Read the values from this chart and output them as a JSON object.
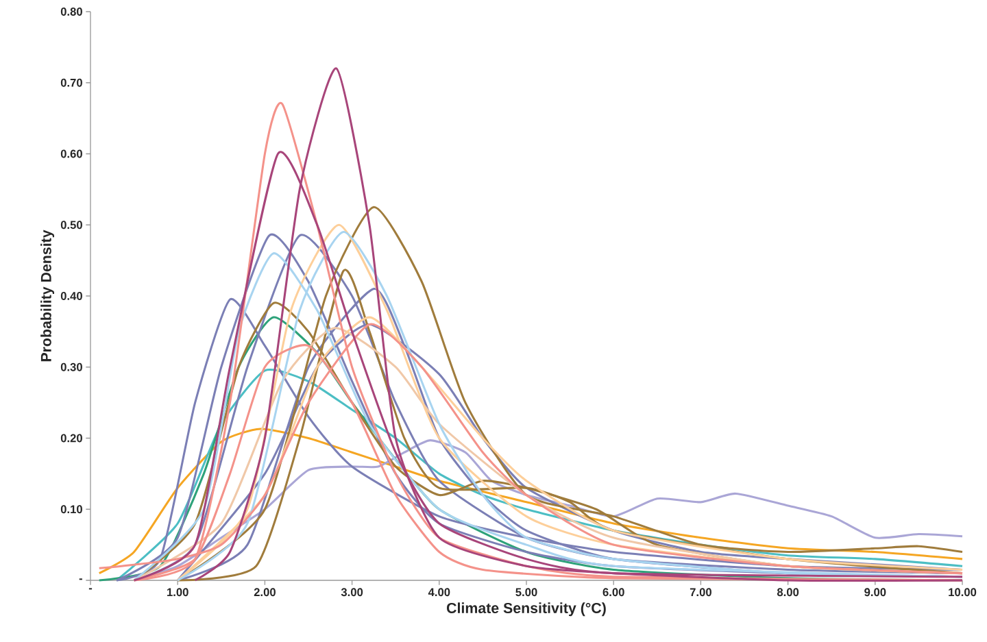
{
  "chart_data": {
    "type": "line",
    "xlabel": "Climate Sensitivity (°C)",
    "ylabel": "Probability Density",
    "xlim": [
      0,
      10
    ],
    "ylim": [
      0,
      0.8
    ],
    "xticks": [
      {
        "value": 0,
        "label": "-"
      },
      {
        "value": 1,
        "label": "1.00"
      },
      {
        "value": 2,
        "label": "2.00"
      },
      {
        "value": 3,
        "label": "3.00"
      },
      {
        "value": 4,
        "label": "4.00"
      },
      {
        "value": 5,
        "label": "5.00"
      },
      {
        "value": 6,
        "label": "6.00"
      },
      {
        "value": 7,
        "label": "7.00"
      },
      {
        "value": 8,
        "label": "8.00"
      },
      {
        "value": 9,
        "label": "9.00"
      },
      {
        "value": 10,
        "label": "10.00"
      }
    ],
    "yticks": [
      {
        "value": 0,
        "label": "-"
      },
      {
        "value": 0.1,
        "label": "0.10"
      },
      {
        "value": 0.2,
        "label": "0.20"
      },
      {
        "value": 0.3,
        "label": "0.30"
      },
      {
        "value": 0.4,
        "label": "0.40"
      },
      {
        "value": 0.5,
        "label": "0.50"
      },
      {
        "value": 0.6,
        "label": "0.60"
      },
      {
        "value": 0.7,
        "label": "0.70"
      },
      {
        "value": 0.8,
        "label": "0.80"
      }
    ],
    "series": [
      {
        "color": "#f5a623",
        "x": [
          0.1,
          0.5,
          1,
          1.5,
          1.95,
          2.5,
          3,
          3.5,
          4,
          5,
          6,
          7,
          8,
          9,
          10
        ],
        "values": [
          0.01,
          0.04,
          0.13,
          0.195,
          0.213,
          0.2,
          0.18,
          0.16,
          0.14,
          0.11,
          0.08,
          0.06,
          0.045,
          0.04,
          0.03
        ]
      },
      {
        "color": "#aaa6d6",
        "x": [
          0.5,
          1,
          1.5,
          2,
          2.5,
          3,
          3.3,
          3.6,
          3.9,
          4.3,
          4.6,
          5,
          5.5,
          6,
          6.5,
          7,
          7.4,
          8,
          8.5,
          9,
          9.5,
          10
        ],
        "values": [
          0,
          0.02,
          0.06,
          0.1,
          0.155,
          0.16,
          0.16,
          0.18,
          0.197,
          0.18,
          0.14,
          0.12,
          0.105,
          0.09,
          0.115,
          0.11,
          0.122,
          0.105,
          0.09,
          0.06,
          0.065,
          0.062
        ]
      },
      {
        "color": "#4cbec4",
        "x": [
          0.3,
          1,
          1.5,
          2,
          2.5,
          3,
          3.5,
          4,
          4.5,
          5,
          6,
          7,
          8,
          9,
          10
        ],
        "values": [
          0,
          0.08,
          0.22,
          0.295,
          0.28,
          0.24,
          0.2,
          0.15,
          0.12,
          0.1,
          0.07,
          0.05,
          0.035,
          0.03,
          0.02
        ]
      },
      {
        "color": "#2ea27a",
        "x": [
          0.1,
          0.8,
          1.3,
          1.7,
          2.1,
          2.6,
          3,
          3.5,
          4,
          5,
          6,
          8,
          10
        ],
        "values": [
          0,
          0.02,
          0.15,
          0.3,
          0.37,
          0.32,
          0.25,
          0.17,
          0.1,
          0.04,
          0.015,
          0.003,
          0
        ]
      },
      {
        "color": "#7b7fb5",
        "x": [
          0.3,
          0.8,
          1.2,
          1.6,
          2,
          2.5,
          3,
          4,
          5,
          6,
          8,
          10
        ],
        "values": [
          0,
          0.03,
          0.25,
          0.395,
          0.33,
          0.23,
          0.16,
          0.09,
          0.06,
          0.04,
          0.02,
          0.015
        ]
      },
      {
        "color": "#7b7fb5",
        "x": [
          0.3,
          1,
          1.5,
          2.05,
          2.5,
          3,
          3.5,
          4,
          5,
          6,
          8,
          10
        ],
        "values": [
          0,
          0.06,
          0.3,
          0.485,
          0.42,
          0.28,
          0.15,
          0.08,
          0.04,
          0.02,
          0.01,
          0.005
        ]
      },
      {
        "color": "#7b7fb5",
        "x": [
          0.5,
          1.2,
          1.8,
          2.4,
          3,
          3.5,
          4,
          5,
          6,
          8,
          10
        ],
        "values": [
          0,
          0.05,
          0.3,
          0.485,
          0.4,
          0.25,
          0.14,
          0.06,
          0.03,
          0.015,
          0.01
        ]
      },
      {
        "color": "#7b7fb5",
        "x": [
          1,
          1.8,
          2.5,
          3.25,
          3.6,
          4,
          4.5,
          5,
          6,
          8,
          10
        ],
        "values": [
          0,
          0.05,
          0.3,
          0.41,
          0.33,
          0.2,
          0.12,
          0.07,
          0.03,
          0.01,
          0.005
        ]
      },
      {
        "color": "#7b7fb5",
        "x": [
          1,
          2,
          2.6,
          3.2,
          4,
          4.5,
          5,
          6,
          7,
          8,
          10
        ],
        "values": [
          0,
          0.15,
          0.3,
          0.36,
          0.29,
          0.2,
          0.13,
          0.07,
          0.04,
          0.03,
          0.015
        ]
      },
      {
        "color": "#a07c3c",
        "x": [
          0.5,
          1.2,
          1.7,
          2.1,
          2.5,
          3,
          3.5,
          4,
          4.5,
          5,
          5.8,
          6.5,
          8,
          10
        ],
        "values": [
          0,
          0.08,
          0.3,
          0.39,
          0.35,
          0.25,
          0.16,
          0.12,
          0.14,
          0.13,
          0.1,
          0.05,
          0.02,
          0.01
        ]
      },
      {
        "color": "#a07c3c",
        "x": [
          1,
          1.9,
          2.4,
          2.9,
          3.2,
          3.6,
          4,
          5,
          5.5,
          6,
          8,
          10
        ],
        "values": [
          0,
          0.02,
          0.2,
          0.435,
          0.35,
          0.2,
          0.13,
          0.13,
          0.11,
          0.07,
          0.03,
          0.01
        ]
      },
      {
        "color": "#a07c3c",
        "x": [
          1,
          2,
          2.7,
          3.25,
          3.8,
          4.3,
          5,
          6,
          7,
          8,
          9,
          9.5,
          10
        ],
        "values": [
          0,
          0.1,
          0.4,
          0.525,
          0.42,
          0.25,
          0.12,
          0.09,
          0.05,
          0.04,
          0.045,
          0.048,
          0.04
        ]
      },
      {
        "color": "#f0c8a8",
        "x": [
          0.5,
          1.5,
          2.2,
          2.8,
          3.5,
          4,
          5,
          6,
          8,
          10
        ],
        "values": [
          0,
          0.08,
          0.28,
          0.355,
          0.3,
          0.22,
          0.12,
          0.06,
          0.02,
          0.01
        ]
      },
      {
        "color": "#fdcf9a",
        "x": [
          1,
          2,
          2.6,
          3.2,
          3.8,
          4.5,
          5,
          6,
          8,
          10
        ],
        "values": [
          0,
          0.12,
          0.3,
          0.37,
          0.3,
          0.2,
          0.14,
          0.07,
          0.03,
          0.015
        ]
      },
      {
        "color": "#fdcf9a",
        "x": [
          1,
          1.8,
          2.3,
          2.85,
          3.4,
          4,
          5,
          6,
          8,
          10
        ],
        "values": [
          0,
          0.1,
          0.38,
          0.5,
          0.38,
          0.2,
          0.09,
          0.05,
          0.02,
          0.01
        ]
      },
      {
        "color": "#a8d4f0",
        "x": [
          0.5,
          1.3,
          1.7,
          2.1,
          2.6,
          3.2,
          4,
          5,
          6,
          10
        ],
        "values": [
          0,
          0.1,
          0.35,
          0.46,
          0.38,
          0.22,
          0.1,
          0.05,
          0.02,
          0.005
        ]
      },
      {
        "color": "#a8d4f0",
        "x": [
          1,
          1.8,
          2.4,
          2.9,
          3.4,
          4,
          4.5,
          5,
          6,
          8,
          10
        ],
        "values": [
          0,
          0.08,
          0.38,
          0.49,
          0.4,
          0.22,
          0.12,
          0.06,
          0.03,
          0.01,
          0.005
        ]
      },
      {
        "color": "#f4928a",
        "x": [
          0.1,
          0.5,
          1,
          1.5,
          2,
          2.5,
          3.2,
          3.8,
          4.5,
          5,
          6,
          8,
          10
        ],
        "values": [
          0.017,
          0.022,
          0.03,
          0.05,
          0.12,
          0.25,
          0.36,
          0.3,
          0.18,
          0.12,
          0.05,
          0.02,
          0.01
        ]
      },
      {
        "color": "#f4928a",
        "x": [
          0.5,
          1.2,
          1.6,
          2,
          2.5,
          3,
          3.5,
          4,
          4.5,
          6,
          10
        ],
        "values": [
          0,
          0.03,
          0.15,
          0.3,
          0.33,
          0.25,
          0.12,
          0.04,
          0.015,
          0.003,
          0
        ]
      },
      {
        "color": "#f4928a",
        "x": [
          0.5,
          1.2,
          1.6,
          2,
          2.2,
          2.6,
          3,
          3.5,
          4,
          5,
          6,
          10
        ],
        "values": [
          0,
          0.03,
          0.25,
          0.6,
          0.67,
          0.5,
          0.3,
          0.15,
          0.06,
          0.02,
          0.005,
          0
        ]
      },
      {
        "color": "#a8457a",
        "x": [
          0.5,
          1.2,
          1.6,
          2.15,
          2.6,
          3,
          3.5,
          4,
          5,
          6,
          10
        ],
        "values": [
          0,
          0.05,
          0.3,
          0.6,
          0.5,
          0.35,
          0.18,
          0.08,
          0.03,
          0.01,
          0.005
        ]
      },
      {
        "color": "#a8457a",
        "x": [
          1.2,
          1.6,
          2,
          2.4,
          2.82,
          3.2,
          3.5,
          4,
          5,
          6,
          8,
          10
        ],
        "values": [
          0,
          0.04,
          0.2,
          0.55,
          0.72,
          0.5,
          0.2,
          0.06,
          0.02,
          0.01,
          0,
          0
        ]
      }
    ]
  }
}
